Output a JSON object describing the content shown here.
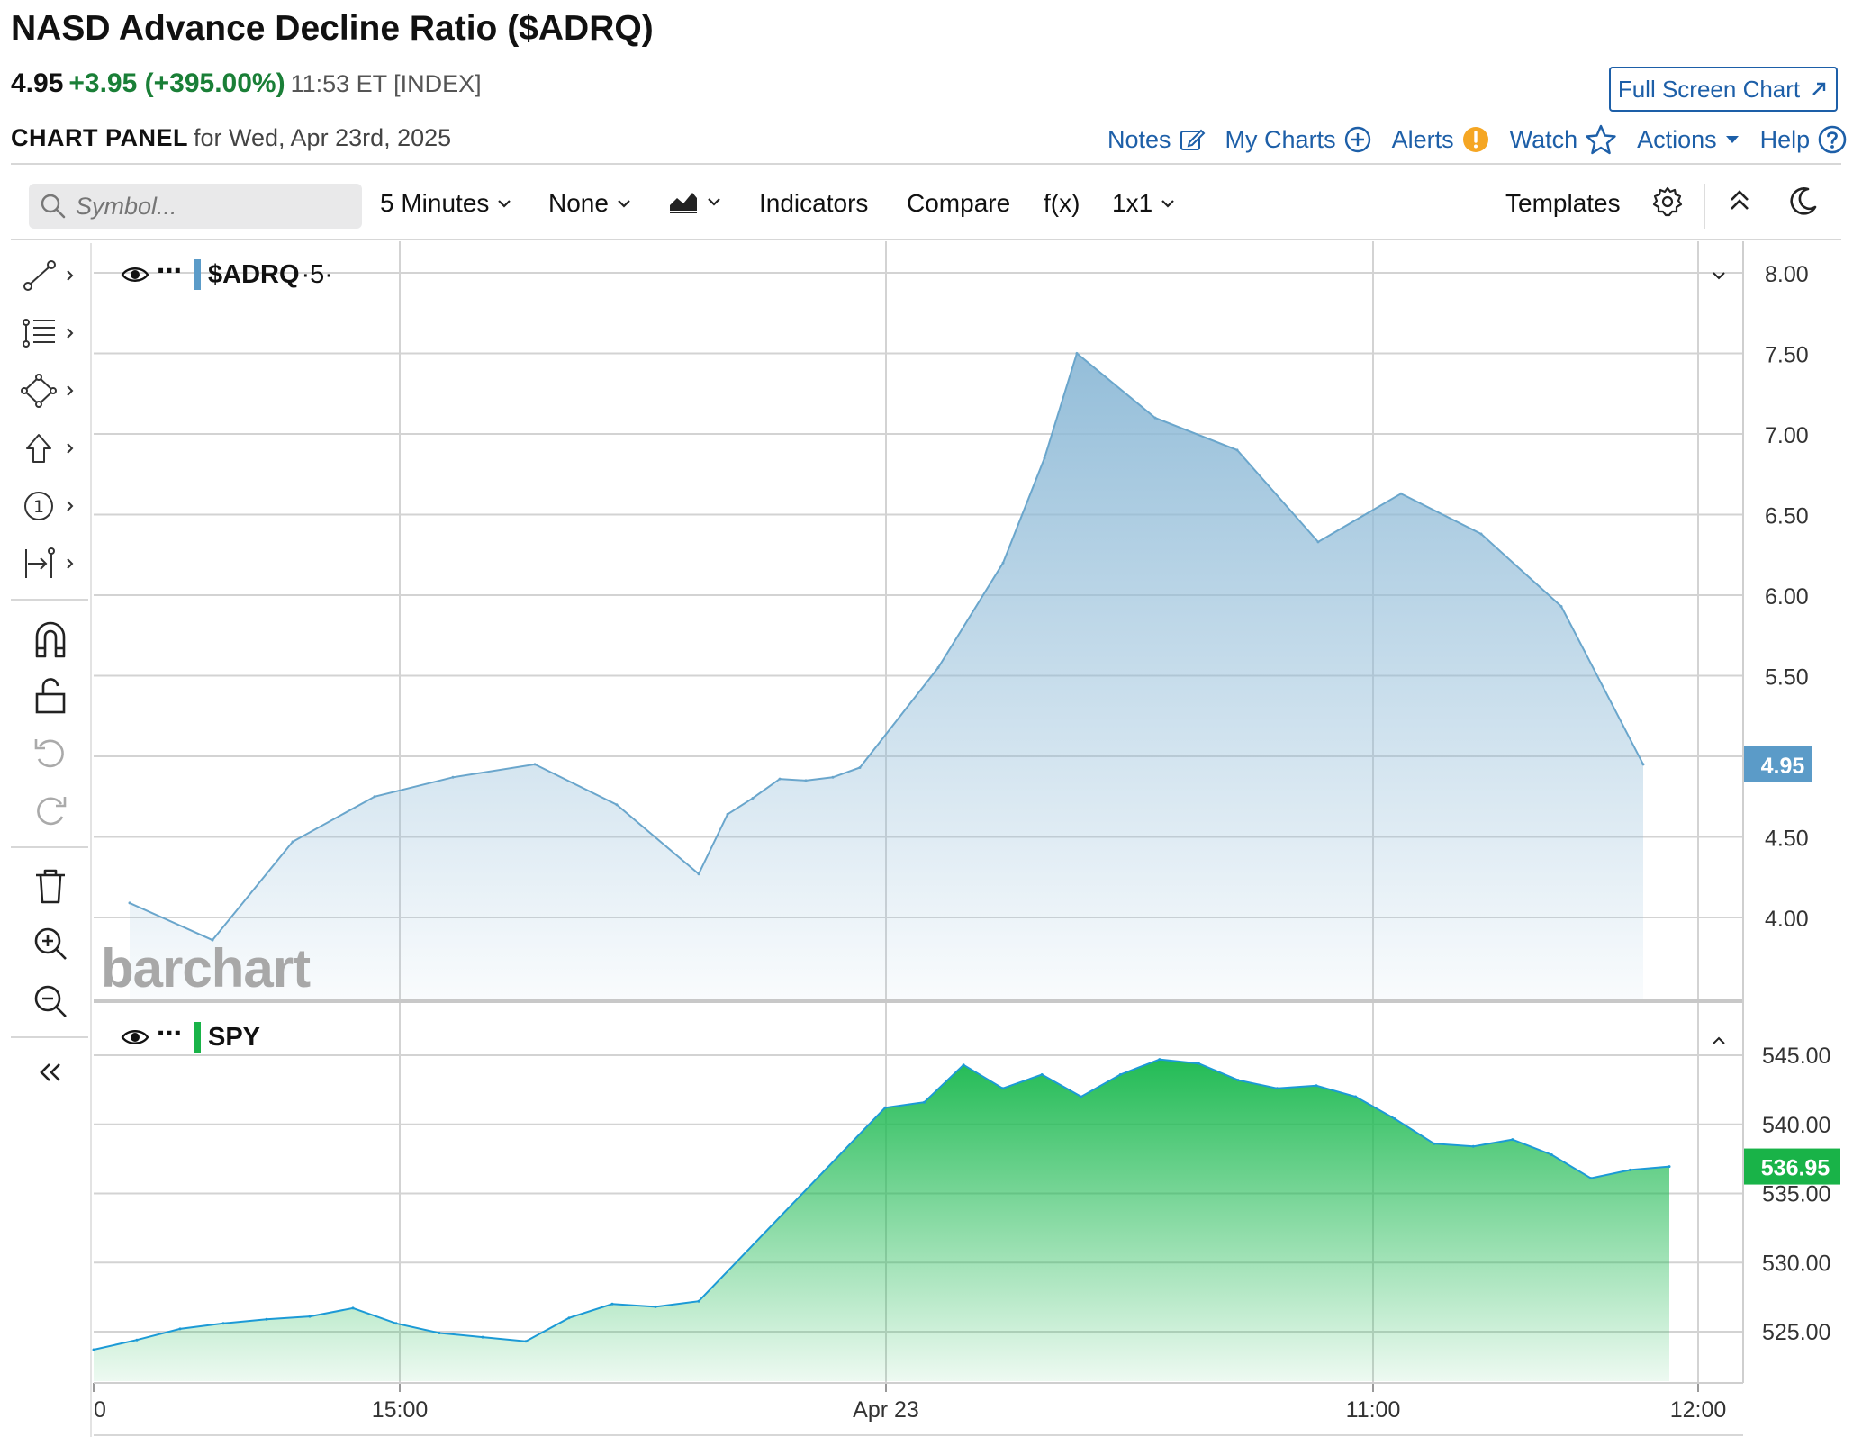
{
  "title": "NASD Advance Decline Ratio ($ADRQ)",
  "quote": {
    "last": "4.95",
    "change": "+3.95 (+395.00%)",
    "meta": "11:53 ET [INDEX]"
  },
  "full_screen_label": "Full Screen Chart",
  "panel": {
    "label": "CHART PANEL",
    "date": "for Wed, Apr 23rd, 2025"
  },
  "links": {
    "notes": "Notes",
    "mycharts": "My Charts",
    "alerts": "Alerts",
    "watch": "Watch",
    "actions": "Actions",
    "help": "Help"
  },
  "toolbar": {
    "search_placeholder": "Symbol...",
    "interval": "5 Minutes",
    "overlay": "None",
    "indicators": "Indicators",
    "compare": "Compare",
    "fx": "f(x)",
    "layout": "1x1",
    "templates": "Templates"
  },
  "colors": {
    "adrq_line": "#6aa6cc",
    "adrq_badge": "#5b9bc8",
    "spy_line": "#1c9ad6",
    "spy_fill": "#22bb55",
    "spy_badge": "#19b348",
    "link": "#1d5fa8",
    "positive": "#1a7f37",
    "alert": "#f5a623"
  },
  "watermark": "barchart",
  "chart_data": [
    {
      "type": "area",
      "series_label": "$ADRQ",
      "series_suffix": "·5·",
      "last_label": "4.95",
      "ylim": [
        3.5,
        8.2
      ],
      "y_ticks": [
        4.0,
        4.5,
        5.0,
        5.5,
        6.0,
        6.5,
        7.0,
        7.5,
        8.0
      ],
      "y_tick_labels": [
        "4.00",
        "4.50",
        "",
        "5.50",
        "6.00",
        "6.50",
        "7.00",
        "7.50",
        "8.00"
      ],
      "values": [
        4.09,
        3.86,
        4.47,
        4.75,
        4.87,
        4.95,
        4.7,
        4.27,
        4.64,
        4.74,
        4.86,
        4.85,
        4.87,
        4.93,
        5.55,
        6.2,
        6.85,
        7.5,
        7.1,
        6.9,
        6.33,
        6.63,
        6.38,
        5.93,
        4.95
      ],
      "x_ticks": [
        2,
        5,
        8,
        11,
        14.7,
        17,
        20.5,
        23.5
      ],
      "x_tick_labels": [
        "",
        "15:00",
        "",
        "Apr 23",
        "",
        "11:00",
        "",
        "12:00"
      ]
    },
    {
      "type": "area",
      "series_label": "SPY",
      "last_label": "536.95",
      "ylim": [
        520.5,
        546.5
      ],
      "y_ticks": [
        525,
        530,
        535,
        540,
        545
      ],
      "y_tick_labels": [
        "525.00",
        "530.00",
        "535.00",
        "540.00",
        "545.00"
      ],
      "values": [
        523.7,
        524.4,
        525.2,
        525.6,
        525.9,
        526.1,
        526.7,
        525.6,
        524.9,
        524.6,
        524.3,
        526.0,
        527.0,
        526.8,
        527.2,
        541.2,
        541.6,
        544.3,
        542.6,
        543.6,
        542.0,
        543.6,
        544.7,
        544.4,
        543.2,
        542.6,
        542.8,
        542.0,
        540.4,
        538.6,
        538.4,
        538.9,
        537.8,
        536.1,
        536.7,
        536.95
      ],
      "x_tick_labels": [
        "0",
        "15:00",
        "Apr 23",
        "11:00",
        "12:00"
      ]
    }
  ]
}
